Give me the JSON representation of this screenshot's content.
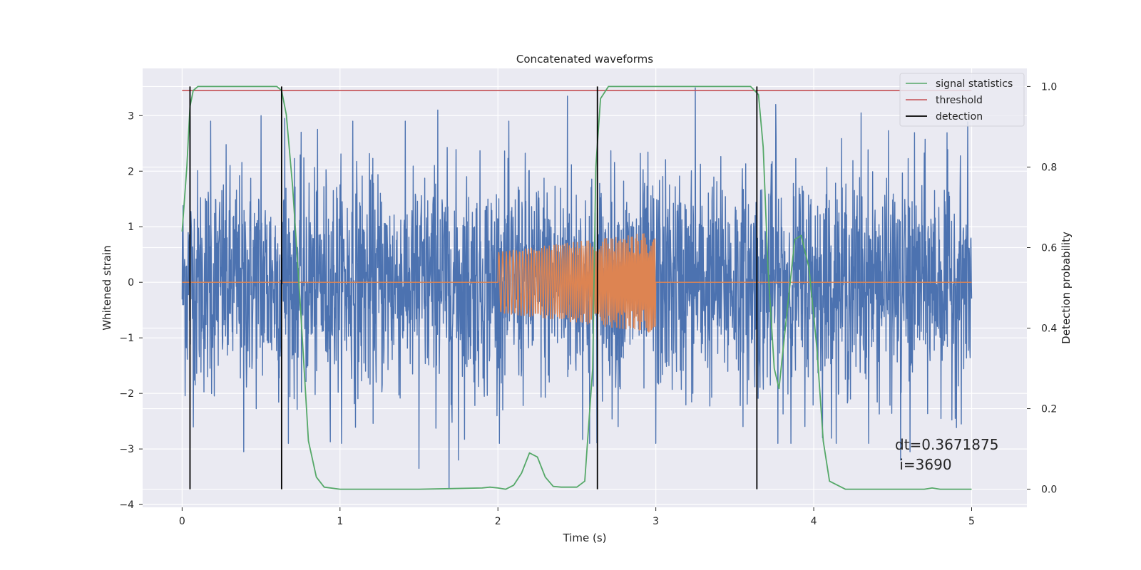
{
  "chart_data": {
    "type": "line",
    "title": "Concatenated waveforms",
    "xlabel": "Time (s)",
    "ylabel_left": "Whitened strain",
    "ylabel_right": "Detection probability",
    "xlim": [
      -0.25,
      5.35
    ],
    "ylim_left": [
      -4.05,
      3.85
    ],
    "ylim_right": [
      -0.045,
      1.045
    ],
    "x_ticks": [
      0,
      1,
      2,
      3,
      4,
      5
    ],
    "x_tick_labels": [
      "0",
      "1",
      "2",
      "3",
      "4",
      "5"
    ],
    "y_left_ticks": [
      -4,
      -3,
      -2,
      -1,
      0,
      1,
      2,
      3
    ],
    "y_left_tick_labels": [
      "−4",
      "−3",
      "−2",
      "−1",
      "0",
      "1",
      "2",
      "3"
    ],
    "y_right_ticks": [
      0.0,
      0.2,
      0.4,
      0.6,
      0.8,
      1.0
    ],
    "y_right_tick_labels": [
      "0.0",
      "0.2",
      "0.4",
      "0.6",
      "0.8",
      "1.0"
    ],
    "grid": true,
    "legend_position": "top-right",
    "legend": [
      {
        "label": "signal statistics",
        "color": "#55a868"
      },
      {
        "label": "threshold",
        "color": "#c44e52"
      },
      {
        "label": "detection",
        "color": "#000000"
      }
    ],
    "series": [
      {
        "kind": "noise",
        "axis": "left",
        "color": "#4c72b0",
        "x_range": [
          0,
          5
        ],
        "typical_band": [
          -1.6,
          1.6
        ],
        "peaks": [
          [
            0.05,
            3.0
          ],
          [
            0.18,
            2.9
          ],
          [
            0.5,
            3.0
          ],
          [
            0.65,
            2.95
          ],
          [
            1.08,
            2.9
          ],
          [
            1.62,
            3.1
          ],
          [
            2.44,
            3.35
          ],
          [
            3.25,
            3.5
          ],
          [
            3.76,
            3.2
          ],
          [
            4.3,
            3.05
          ]
        ],
        "troughs": [
          [
            0.39,
            -3.05
          ],
          [
            1.5,
            -3.35
          ],
          [
            1.69,
            -3.7
          ],
          [
            1.75,
            -3.2
          ],
          [
            2.58,
            -2.9
          ],
          [
            3.0,
            -2.9
          ],
          [
            4.55,
            -3.2
          ],
          [
            4.61,
            -3.05
          ]
        ]
      },
      {
        "kind": "chirp",
        "axis": "left",
        "color": "#dd8452",
        "x_range": [
          0,
          5
        ],
        "active_range": [
          2.0,
          3.0
        ],
        "amplitude_start": 0.55,
        "amplitude_end": 0.92
      },
      {
        "name": "signal statistics",
        "axis": "right",
        "color": "#55a868",
        "x": [
          0.0,
          0.03,
          0.05,
          0.07,
          0.1,
          0.15,
          0.3,
          0.5,
          0.6,
          0.63,
          0.66,
          0.7,
          0.75,
          0.8,
          0.85,
          0.9,
          1.0,
          1.5,
          1.9,
          1.95,
          2.0,
          2.05,
          2.1,
          2.15,
          2.2,
          2.25,
          2.3,
          2.35,
          2.4,
          2.5,
          2.55,
          2.6,
          2.62,
          2.65,
          2.7,
          2.8,
          3.0,
          3.3,
          3.6,
          3.65,
          3.68,
          3.71,
          3.75,
          3.78,
          3.82,
          3.88,
          3.92,
          3.97,
          4.02,
          4.06,
          4.1,
          4.2,
          4.5,
          4.7,
          4.75,
          4.8,
          5.0
        ],
        "y": [
          0.64,
          0.8,
          0.95,
          0.99,
          1.0,
          1.0,
          1.0,
          1.0,
          1.0,
          0.99,
          0.93,
          0.75,
          0.45,
          0.12,
          0.03,
          0.005,
          0.0,
          0.0,
          0.003,
          0.005,
          0.003,
          0.0,
          0.01,
          0.04,
          0.09,
          0.08,
          0.03,
          0.007,
          0.005,
          0.005,
          0.02,
          0.3,
          0.8,
          0.97,
          1.0,
          1.0,
          1.0,
          1.0,
          1.0,
          0.98,
          0.85,
          0.55,
          0.3,
          0.25,
          0.4,
          0.62,
          0.63,
          0.55,
          0.35,
          0.12,
          0.02,
          0.0,
          0.0,
          0.0,
          0.003,
          0.0,
          0.0
        ]
      },
      {
        "name": "threshold",
        "axis": "right",
        "color": "#c44e52",
        "x": [
          0,
          5
        ],
        "y": [
          0.99,
          0.99
        ]
      }
    ],
    "detections": [
      0.05,
      0.63,
      2.63,
      3.64
    ],
    "detection_range": [
      0.0,
      1.0
    ],
    "annotations": [
      {
        "text": "dt=0.3671875",
        "x": 4.5,
        "y": 0.11
      },
      {
        "text": " i=3690",
        "x": 4.5,
        "y": 0.06
      }
    ]
  }
}
